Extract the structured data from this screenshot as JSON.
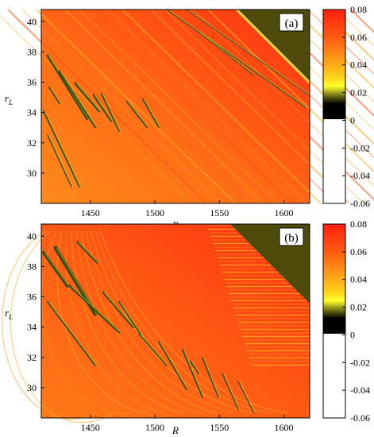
{
  "chart_data": [
    {
      "type": "heatmap",
      "panel_label": "(a)",
      "xlabel": "R",
      "ylabel": "r_L",
      "xlim": [
        1412,
        1620
      ],
      "ylim": [
        28,
        40.8
      ],
      "xticks": [
        "1450",
        "1500",
        "1550",
        "1600"
      ],
      "xtick_values": [
        1450,
        1500,
        1550,
        1600
      ],
      "yticks": [
        "30",
        "32",
        "34",
        "36",
        "38",
        "40"
      ],
      "ytick_values": [
        30,
        32,
        34,
        36,
        38,
        40
      ],
      "colorbar": {
        "ticks": [
          "0.08",
          "0.06",
          "0.04",
          "0.02",
          "0",
          "-0.02",
          "-0.04",
          "-0.06"
        ],
        "tick_values": [
          0.08,
          0.06,
          0.04,
          0.02,
          0,
          -0.02,
          -0.04,
          -0.06
        ],
        "range": [
          -0.06,
          0.08
        ]
      },
      "dominant_value": 0.06,
      "corner_region_value": -0.005,
      "stripe_value": -0.005
    },
    {
      "type": "heatmap",
      "panel_label": "(b)",
      "xlabel": "R",
      "ylabel": "r_L",
      "xlim": [
        1412,
        1620
      ],
      "ylim": [
        28,
        40.8
      ],
      "xticks": [
        "1450",
        "1500",
        "1550",
        "1600"
      ],
      "xtick_values": [
        1450,
        1500,
        1550,
        1600
      ],
      "yticks": [
        "30",
        "32",
        "34",
        "36",
        "38",
        "40"
      ],
      "ytick_values": [
        30,
        32,
        34,
        36,
        38,
        40
      ],
      "colorbar": {
        "ticks": [
          "0.08",
          "0.06",
          "0.04",
          "0.02",
          "0",
          "-0.02",
          "-0.04",
          "-0.06"
        ],
        "tick_values": [
          0.08,
          0.06,
          0.04,
          0.02,
          0,
          -0.02,
          -0.04,
          -0.06
        ],
        "range": [
          -0.06,
          0.08
        ]
      },
      "dominant_value": 0.06,
      "corner_region_value": -0.005,
      "stripe_value": -0.005
    }
  ],
  "colors": {
    "high": "#ff2a10",
    "mid": "#ff7a18",
    "low": "#ffd21a",
    "near_zero": "#4d4a0a",
    "negative": "#000000",
    "below": "#ffffff"
  }
}
